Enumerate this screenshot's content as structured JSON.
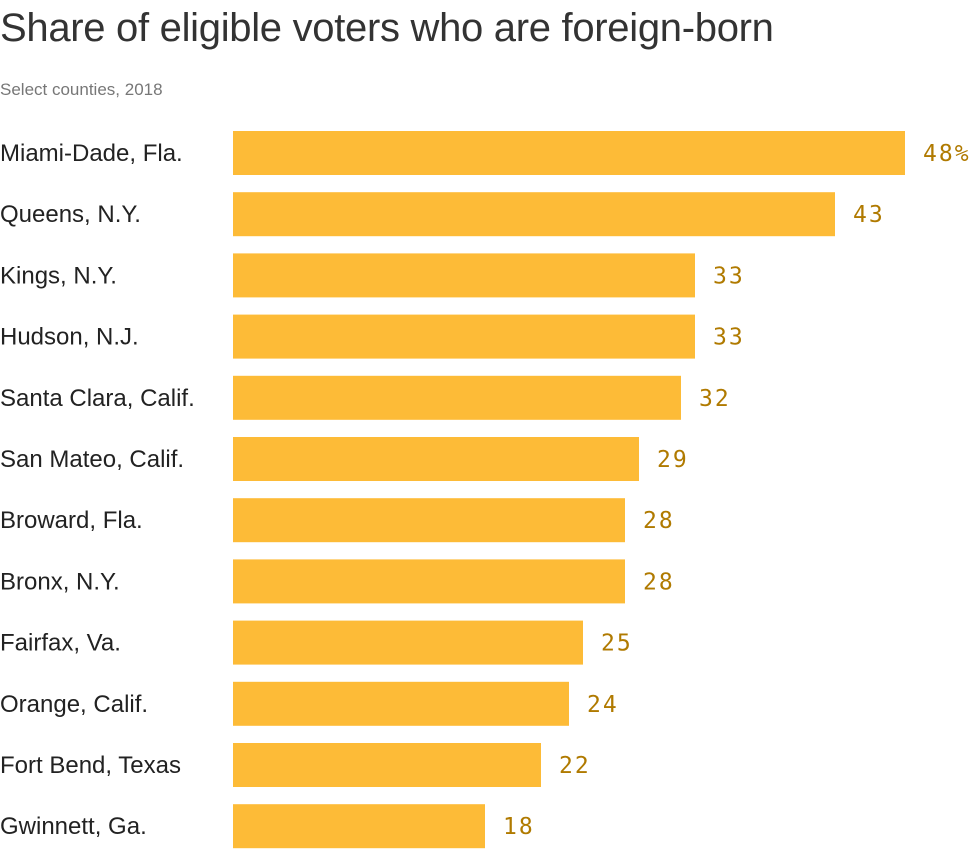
{
  "title": "Share of eligible voters who are foreign-born",
  "subtitle": "Select counties, 2018",
  "colors": {
    "bar": "#FDBB37",
    "value_label": "#B07A00",
    "text": "#222222"
  },
  "chart_data": {
    "type": "bar",
    "orientation": "horizontal",
    "title": "Share of eligible voters who are foreign-born",
    "subtitle": "Select counties, 2018",
    "unit": "%",
    "categories": [
      "Miami-Dade, Fla.",
      "Queens, N.Y.",
      "Kings, N.Y.",
      "Hudson, N.J.",
      "Santa Clara, Calif.",
      "San Mateo, Calif.",
      "Broward, Fla.",
      "Bronx, N.Y.",
      "Fairfax, Va.",
      "Orange, Calif.",
      "Fort Bend, Texas",
      "Gwinnett, Ga."
    ],
    "values": [
      48,
      43,
      33,
      33,
      32,
      29,
      28,
      28,
      25,
      24,
      22,
      18
    ],
    "value_labels": [
      "48%",
      "43",
      "33",
      "33",
      "32",
      "29",
      "28",
      "28",
      "25",
      "24",
      "22",
      "18"
    ],
    "xlim": [
      0,
      48
    ],
    "grid": false,
    "legend": "none"
  }
}
